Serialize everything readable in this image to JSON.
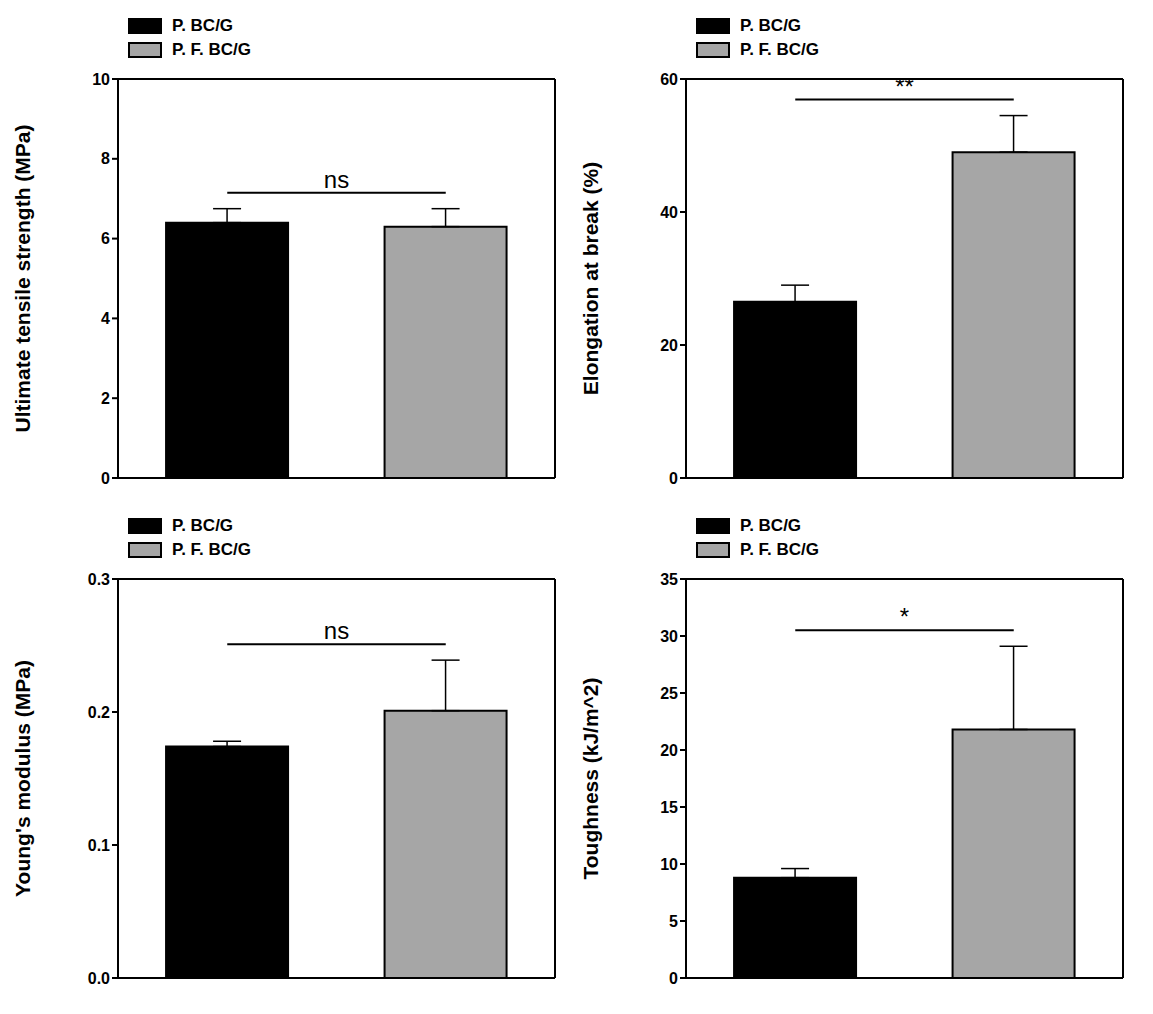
{
  "chart_data": [
    {
      "type": "bar",
      "y_label": "Ultimate tensile strength (MPa)",
      "categories": [
        null,
        null
      ],
      "series": [
        {
          "name": "P. BC/G",
          "color": "#000000",
          "values": [
            6.4,
            null
          ],
          "errors": [
            0.35,
            null
          ]
        },
        {
          "name": "P. F. BC/G",
          "color": "#a6a6a6",
          "values": [
            null,
            6.3
          ],
          "errors": [
            null,
            0.45
          ]
        }
      ],
      "ylim": [
        0,
        10
      ],
      "yticks": [
        0,
        2,
        4,
        6,
        8,
        10
      ],
      "annotation": "ns",
      "tick_labels": "y",
      "legend": "upper left"
    },
    {
      "type": "bar",
      "y_label": "Elongation at break (%)",
      "categories": [
        null,
        null
      ],
      "series": [
        {
          "name": "P. BC/G",
          "color": "#000000",
          "values": [
            26.5,
            null
          ],
          "errors": [
            2.5,
            null
          ]
        },
        {
          "name": "P. F. BC/G",
          "color": "#a6a6a6",
          "values": [
            null,
            49
          ],
          "errors": [
            null,
            5.5
          ]
        }
      ],
      "ylim": [
        0,
        60
      ],
      "yticks": [
        0,
        20,
        40,
        60
      ],
      "annotation": "**",
      "tick_labels": "y",
      "legend": "upper left"
    },
    {
      "type": "bar",
      "y_label": "Young's modulus (MPa)",
      "categories": [
        null,
        null
      ],
      "series": [
        {
          "name": "P. BC/G",
          "color": "#000000",
          "values": [
            0.174,
            null
          ],
          "errors": [
            0.004,
            null
          ]
        },
        {
          "name": "P. F. BC/G",
          "color": "#a6a6a6",
          "values": [
            null,
            0.201
          ],
          "errors": [
            null,
            0.038
          ]
        }
      ],
      "ylim": [
        0,
        0.3
      ],
      "yticks": [
        {
          "value": 0,
          "label": "0.0"
        },
        0.1,
        0.2,
        0.3
      ],
      "annotation": "ns",
      "tick_labels": "y",
      "legend": "upper left"
    },
    {
      "type": "bar",
      "y_label": "Toughness (kJ/m^2)",
      "categories": [
        null,
        null
      ],
      "series": [
        {
          "name": "P. BC/G",
          "color": "#000000",
          "values": [
            8.8,
            null
          ],
          "errors": [
            0.8,
            null
          ]
        },
        {
          "name": "P. F. BC/G",
          "color": "#a6a6a6",
          "values": [
            null,
            21.8
          ],
          "errors": [
            null,
            7.3
          ]
        }
      ],
      "ylim": [
        0,
        35
      ],
      "yticks": [
        0,
        5,
        10,
        15,
        20,
        25,
        30,
        35
      ],
      "annotation": "*",
      "tick_labels": "y",
      "legend": "upper left"
    }
  ]
}
